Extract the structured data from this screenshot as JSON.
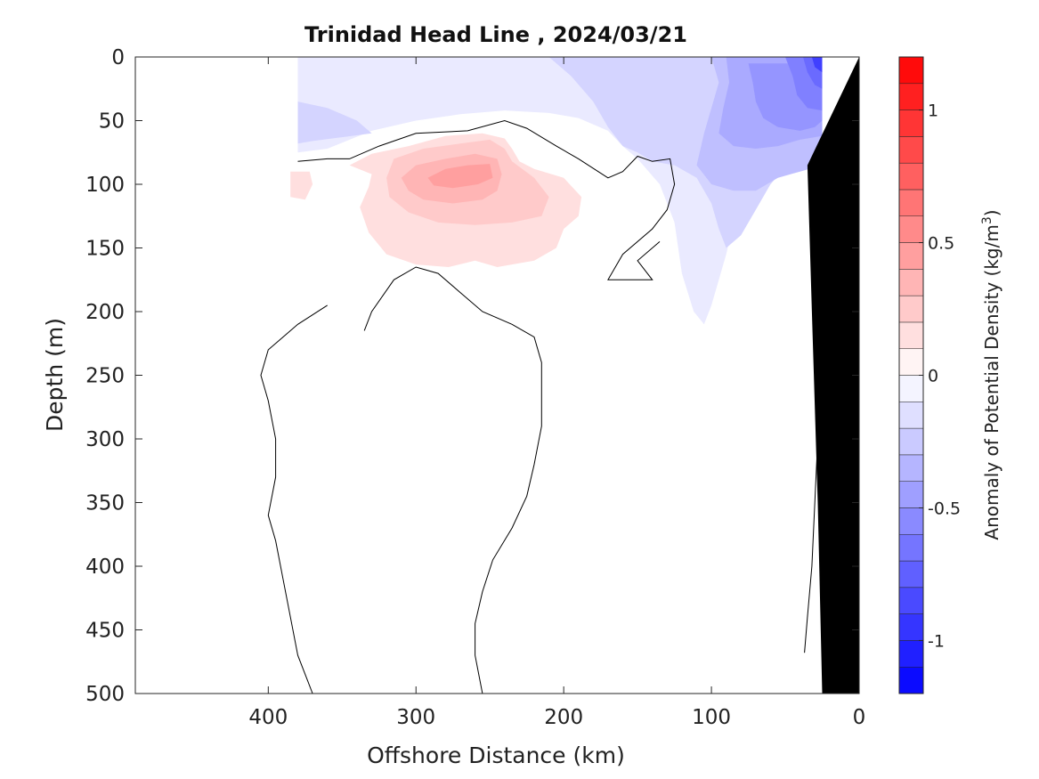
{
  "chart_data": {
    "type": "heatmap",
    "title": "Trinidad Head Line , 2024/03/21",
    "xlabel": "Offshore Distance (km)",
    "ylabel": "Depth (m)",
    "colorbar_label": "Anomaly of Potential Density (kg/m",
    "colorbar_label_sup": "3",
    "colorbar_label_close": ")",
    "xlim": [
      490,
      0
    ],
    "ylim": [
      0,
      500
    ],
    "x_ticks": [
      {
        "value": 400,
        "label": "400"
      },
      {
        "value": 300,
        "label": "300"
      },
      {
        "value": 200,
        "label": "200"
      },
      {
        "value": 100,
        "label": "100"
      },
      {
        "value": 0,
        "label": "0"
      }
    ],
    "y_ticks": [
      {
        "value": 0,
        "label": "0"
      },
      {
        "value": 50,
        "label": "50"
      },
      {
        "value": 100,
        "label": "100"
      },
      {
        "value": 150,
        "label": "150"
      },
      {
        "value": 200,
        "label": "200"
      },
      {
        "value": 250,
        "label": "250"
      },
      {
        "value": 300,
        "label": "300"
      },
      {
        "value": 350,
        "label": "350"
      },
      {
        "value": 400,
        "label": "400"
      },
      {
        "value": 450,
        "label": "450"
      },
      {
        "value": 500,
        "label": "500"
      }
    ],
    "colorbar": {
      "range": [
        -1.2,
        1.2
      ],
      "step": 0.1,
      "colormap": "blue-white-red",
      "ticks": [
        {
          "value": 1,
          "label": "1"
        },
        {
          "value": 0.5,
          "label": "0.5"
        },
        {
          "value": 0,
          "label": "0"
        },
        {
          "value": -0.5,
          "label": "-0.5"
        },
        {
          "value": -1,
          "label": "-1"
        }
      ]
    },
    "colors": {
      "positive": "#ff0000",
      "negative": "#0000ff",
      "neutral": "#ffffff",
      "bathymetry": "#000000",
      "zero_contour": "#000000"
    },
    "zero_contours": [
      [
        [
          380,
          82
        ],
        [
          360,
          80
        ],
        [
          345,
          80
        ],
        [
          325,
          70
        ],
        [
          300,
          60
        ],
        [
          265,
          58
        ],
        [
          240,
          50
        ],
        [
          225,
          56
        ],
        [
          205,
          70
        ],
        [
          190,
          80
        ],
        [
          170,
          95
        ],
        [
          160,
          90
        ],
        [
          150,
          78
        ],
        [
          140,
          82
        ],
        [
          128,
          80
        ],
        [
          125,
          100
        ],
        [
          130,
          120
        ],
        [
          140,
          135
        ],
        [
          160,
          155
        ],
        [
          170,
          175
        ],
        [
          140,
          175
        ],
        [
          150,
          160
        ],
        [
          135,
          145
        ]
      ],
      [
        [
          360,
          195
        ],
        [
          380,
          210
        ],
        [
          400,
          230
        ],
        [
          405,
          250
        ],
        [
          400,
          270
        ],
        [
          395,
          300
        ],
        [
          395,
          330
        ],
        [
          400,
          360
        ],
        [
          395,
          380
        ],
        [
          390,
          410
        ],
        [
          385,
          440
        ],
        [
          380,
          470
        ],
        [
          370,
          500
        ]
      ],
      [
        [
          255,
          500
        ],
        [
          260,
          470
        ],
        [
          260,
          445
        ],
        [
          255,
          420
        ],
        [
          248,
          395
        ],
        [
          235,
          370
        ],
        [
          225,
          345
        ],
        [
          220,
          320
        ],
        [
          215,
          290
        ],
        [
          215,
          265
        ],
        [
          215,
          240
        ],
        [
          220,
          220
        ],
        [
          235,
          210
        ],
        [
          255,
          200
        ],
        [
          270,
          185
        ],
        [
          285,
          170
        ],
        [
          300,
          165
        ],
        [
          315,
          175
        ],
        [
          330,
          200
        ],
        [
          335,
          215
        ]
      ],
      [
        [
          30,
          100
        ],
        [
          32,
          140
        ],
        [
          30,
          185
        ]
      ],
      [
        [
          25,
          245
        ],
        [
          28,
          300
        ],
        [
          30,
          350
        ],
        [
          32,
          400
        ],
        [
          35,
          440
        ],
        [
          37,
          468
        ]
      ]
    ],
    "anomaly_regions": [
      {
        "value": 0.15,
        "polygon": [
          [
            330,
            92
          ],
          [
            345,
            85
          ],
          [
            330,
            76
          ],
          [
            305,
            70
          ],
          [
            280,
            62
          ],
          [
            255,
            60
          ],
          [
            240,
            64
          ],
          [
            235,
            72
          ],
          [
            230,
            82
          ],
          [
            220,
            88
          ],
          [
            200,
            95
          ],
          [
            188,
            110
          ],
          [
            190,
            125
          ],
          [
            200,
            135
          ],
          [
            205,
            150
          ],
          [
            220,
            160
          ],
          [
            245,
            165
          ],
          [
            260,
            160
          ],
          [
            278,
            165
          ],
          [
            300,
            163
          ],
          [
            320,
            155
          ],
          [
            332,
            138
          ],
          [
            338,
            118
          ],
          [
            332,
            102
          ]
        ]
      },
      {
        "value": 0.15,
        "polygon": [
          [
            385,
            90
          ],
          [
            372,
            90
          ],
          [
            370,
            100
          ],
          [
            375,
            112
          ],
          [
            385,
            110
          ]
        ]
      },
      {
        "value": 0.25,
        "polygon": [
          [
            320,
            95
          ],
          [
            315,
            80
          ],
          [
            295,
            72
          ],
          [
            270,
            68
          ],
          [
            250,
            65
          ],
          [
            240,
            72
          ],
          [
            235,
            82
          ],
          [
            220,
            95
          ],
          [
            210,
            110
          ],
          [
            215,
            125
          ],
          [
            235,
            130
          ],
          [
            260,
            132
          ],
          [
            285,
            130
          ],
          [
            305,
            122
          ],
          [
            318,
            110
          ]
        ]
      },
      {
        "value": 0.35,
        "polygon": [
          [
            310,
            95
          ],
          [
            300,
            85
          ],
          [
            280,
            80
          ],
          [
            260,
            76
          ],
          [
            245,
            80
          ],
          [
            242,
            92
          ],
          [
            245,
            105
          ],
          [
            255,
            112
          ],
          [
            275,
            115
          ],
          [
            295,
            112
          ],
          [
            305,
            105
          ]
        ]
      },
      {
        "value": 0.45,
        "polygon": [
          [
            292,
            95
          ],
          [
            280,
            88
          ],
          [
            265,
            85
          ],
          [
            250,
            84
          ],
          [
            248,
            95
          ],
          [
            258,
            100
          ],
          [
            275,
            103
          ],
          [
            288,
            101
          ]
        ]
      },
      {
        "value": -0.1,
        "polygon": [
          [
            380,
            0
          ],
          [
            25,
            0
          ],
          [
            25,
            60
          ],
          [
            45,
            65
          ],
          [
            60,
            90
          ],
          [
            75,
            110
          ],
          [
            85,
            130
          ],
          [
            90,
            155
          ],
          [
            95,
            175
          ],
          [
            100,
            195
          ],
          [
            105,
            210
          ],
          [
            112,
            200
          ],
          [
            120,
            170
          ],
          [
            125,
            130
          ],
          [
            135,
            100
          ],
          [
            150,
            80
          ],
          [
            160,
            70
          ],
          [
            170,
            58
          ],
          [
            190,
            48
          ],
          [
            210,
            44
          ],
          [
            240,
            42
          ],
          [
            270,
            45
          ],
          [
            300,
            50
          ],
          [
            330,
            58
          ],
          [
            360,
            72
          ],
          [
            380,
            75
          ]
        ]
      },
      {
        "value": -0.2,
        "polygon": [
          [
            380,
            35
          ],
          [
            360,
            40
          ],
          [
            340,
            50
          ],
          [
            330,
            60
          ],
          [
            350,
            63
          ],
          [
            370,
            66
          ],
          [
            380,
            68
          ]
        ]
      },
      {
        "value": -0.2,
        "polygon": [
          [
            210,
            0
          ],
          [
            195,
            15
          ],
          [
            180,
            35
          ],
          [
            170,
            55
          ],
          [
            160,
            70
          ],
          [
            150,
            75
          ],
          [
            140,
            82
          ],
          [
            125,
            85
          ],
          [
            110,
            95
          ],
          [
            100,
            115
          ],
          [
            95,
            135
          ],
          [
            90,
            150
          ],
          [
            80,
            140
          ],
          [
            70,
            120
          ],
          [
            60,
            100
          ],
          [
            45,
            80
          ],
          [
            25,
            70
          ],
          [
            25,
            0
          ]
        ]
      },
      {
        "value": -0.3,
        "polygon": [
          [
            100,
            0
          ],
          [
            95,
            20
          ],
          [
            100,
            40
          ],
          [
            105,
            60
          ],
          [
            110,
            85
          ],
          [
            100,
            100
          ],
          [
            85,
            105
          ],
          [
            70,
            105
          ],
          [
            55,
            95
          ],
          [
            40,
            90
          ],
          [
            25,
            85
          ],
          [
            25,
            0
          ]
        ]
      },
      {
        "value": -0.4,
        "polygon": [
          [
            90,
            0
          ],
          [
            88,
            20
          ],
          [
            92,
            40
          ],
          [
            95,
            60
          ],
          [
            85,
            70
          ],
          [
            70,
            72
          ],
          [
            55,
            70
          ],
          [
            40,
            65
          ],
          [
            25,
            62
          ],
          [
            25,
            0
          ]
        ]
      },
      {
        "value": -0.5,
        "polygon": [
          [
            75,
            5
          ],
          [
            72,
            20
          ],
          [
            70,
            35
          ],
          [
            65,
            48
          ],
          [
            55,
            55
          ],
          [
            40,
            58
          ],
          [
            30,
            55
          ],
          [
            25,
            50
          ],
          [
            25,
            5
          ]
        ]
      },
      {
        "value": -0.6,
        "polygon": [
          [
            50,
            0
          ],
          [
            45,
            15
          ],
          [
            42,
            30
          ],
          [
            35,
            40
          ],
          [
            25,
            42
          ],
          [
            25,
            0
          ]
        ]
      },
      {
        "value": -0.7,
        "polygon": [
          [
            38,
            0
          ],
          [
            35,
            12
          ],
          [
            30,
            22
          ],
          [
            25,
            25
          ],
          [
            25,
            0
          ]
        ]
      },
      {
        "value": -0.9,
        "polygon": [
          [
            32,
            0
          ],
          [
            30,
            8
          ],
          [
            25,
            12
          ],
          [
            25,
            0
          ]
        ]
      }
    ],
    "bathymetry_polygon": [
      [
        0,
        0
      ],
      [
        0,
        500
      ],
      [
        25,
        500
      ],
      [
        28,
        350
      ],
      [
        32,
        200
      ],
      [
        35,
        85
      ],
      [
        0,
        0
      ]
    ]
  }
}
